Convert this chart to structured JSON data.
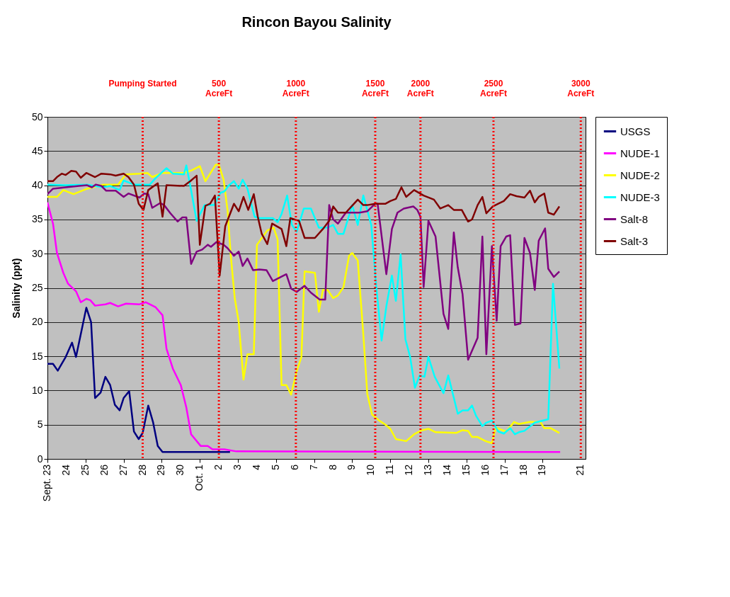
{
  "chart_data": {
    "type": "line",
    "title": "Rincon Bayou Salinity",
    "ylabel": "Salinity (ppt)",
    "xlim": [
      "--09-23",
      "--10-21T06:00"
    ],
    "ylim": [
      0,
      50
    ],
    "xticks": [
      {
        "value": "--09-23",
        "label": "Sept. 23"
      },
      {
        "value": "--09-24",
        "label": "24"
      },
      {
        "value": "--09-25",
        "label": "25"
      },
      {
        "value": "--09-26",
        "label": "26"
      },
      {
        "value": "--09-27",
        "label": "27"
      },
      {
        "value": "--09-28",
        "label": "28"
      },
      {
        "value": "--09-29",
        "label": "29"
      },
      {
        "value": "--09-30",
        "label": "30"
      },
      {
        "value": "--10-01",
        "label": "Oct. 1"
      },
      {
        "value": "--10-02",
        "label": "2"
      },
      {
        "value": "--10-03",
        "label": "3"
      },
      {
        "value": "--10-04",
        "label": "4"
      },
      {
        "value": "--10-05",
        "label": "5"
      },
      {
        "value": "--10-06",
        "label": "6"
      },
      {
        "value": "--10-07",
        "label": "7"
      },
      {
        "value": "--10-08",
        "label": "8"
      },
      {
        "value": "--10-09",
        "label": "9"
      },
      {
        "value": "--10-10",
        "label": "10"
      },
      {
        "value": "--10-11",
        "label": "11"
      },
      {
        "value": "--10-12",
        "label": "12"
      },
      {
        "value": "--10-13",
        "label": "13"
      },
      {
        "value": "--10-14",
        "label": "14"
      },
      {
        "value": "--10-15",
        "label": "15"
      },
      {
        "value": "--10-16",
        "label": "16"
      },
      {
        "value": "--10-17",
        "label": "17"
      },
      {
        "value": "--10-18",
        "label": "18"
      },
      {
        "value": "--10-19",
        "label": "19"
      },
      {
        "value": "--10-21",
        "label": "21"
      }
    ],
    "yticks": [
      0,
      5,
      10,
      15,
      20,
      25,
      30,
      35,
      40,
      45,
      50
    ],
    "grid": "y",
    "legend": "right",
    "ref_lines": [
      {
        "axis": "x",
        "value": "--09-28",
        "label": "Pumping Started",
        "color": "#ff0000",
        "line_style": "dotted"
      },
      {
        "axis": "x",
        "value": "--10-02",
        "label": "500\nAcreFt",
        "color": "#ff0000",
        "line_style": "dotted"
      },
      {
        "axis": "x",
        "value": "--10-06T01:00",
        "label": "1000\nAcreFt",
        "color": "#ff0000",
        "line_style": "dotted"
      },
      {
        "axis": "x",
        "value": "--10-10T05:00",
        "label": "1500\nAcreFt",
        "color": "#ff0000",
        "line_style": "dotted"
      },
      {
        "axis": "x",
        "value": "--10-12T14:00",
        "label": "2000\nAcreFt",
        "color": "#ff0000",
        "line_style": "dotted"
      },
      {
        "axis": "x",
        "value": "--10-16T10:00",
        "label": "2500\nAcreFt",
        "color": "#ff0000",
        "line_style": "dotted"
      },
      {
        "axis": "x",
        "value": "--10-21",
        "label": "3000\nAcreFt",
        "color": "#ff0000",
        "line_style": "dotted"
      }
    ],
    "series": [
      {
        "name": "USGS",
        "color": "#000080",
        "x": [
          "--09-23T00:00",
          "--09-23T07:00",
          "--09-23T13:00",
          "--09-23T23:00",
          "--09-24T07:00",
          "--09-24T12:00",
          "--09-25T01:00",
          "--09-25T07:00",
          "--09-25T12:00",
          "--09-25T19:00",
          "--09-26T01:00",
          "--09-26T07:00",
          "--09-26T13:00",
          "--09-26T19:00",
          "--09-27T00:00",
          "--09-27T07:00",
          "--09-27T13:00",
          "--09-27T19:00",
          "--09-28T00:00",
          "--09-28T07:00",
          "--09-28T13:00",
          "--09-28T19:00",
          "--09-29T01:00",
          "--10-02T14:00"
        ],
        "values": [
          13.9,
          13.9,
          12.9,
          14.9,
          17,
          14.9,
          22.1,
          20,
          8.9,
          9.7,
          12,
          10.8,
          7.9,
          7.1,
          8.9,
          9.9,
          4,
          2.9,
          3.8,
          7.8,
          5.4,
          1.9,
          1,
          1
        ]
      },
      {
        "name": "NUDE-1",
        "color": "#ff00ff",
        "x": [
          "--09-23T00:00",
          "--09-23T07:00",
          "--09-23T12:00",
          "--09-23T20:00",
          "--09-24T02:00",
          "--09-24T12:00",
          "--09-24T18:00",
          "--09-25T01:00",
          "--09-25T06:00",
          "--09-25T12:00",
          "--09-26T01:00",
          "--09-26T07:00",
          "--09-26T17:00",
          "--09-27T03:00",
          "--09-27T20:00",
          "--09-28T04:00",
          "--09-28T16:00",
          "--09-29T01:00",
          "--09-29T06:00",
          "--09-29T14:00",
          "--09-30T00:00",
          "--09-30T07:00",
          "--09-30T13:00",
          "--10-01T01:00",
          "--10-01T10:00",
          "--10-01T16:00",
          "--10-02T07:00",
          "--10-02T22:00",
          "--10-19T22:00"
        ],
        "values": [
          37.5,
          34.4,
          30.1,
          27.2,
          25.6,
          24.5,
          22.9,
          23.4,
          23.2,
          22.4,
          22.6,
          22.8,
          22.3,
          22.7,
          22.6,
          22.9,
          22.2,
          21,
          16.1,
          13.2,
          10.8,
          7.5,
          3.6,
          1.9,
          1.9,
          1.4,
          1.4,
          1.1,
          1
        ]
      },
      {
        "name": "NUDE-2",
        "color": "#ffff00",
        "x": [
          "--09-23T00:00",
          "--09-23T12:00",
          "--09-23T20:00",
          "--09-24T09:00",
          "--09-25T02:00",
          "--09-25T22:00",
          "--09-26T17:00",
          "--09-27T03:00",
          "--09-27T20:00",
          "--09-28T06:00",
          "--09-28T12:00",
          "--09-29T01:00",
          "--09-30T04:00",
          "--09-30T14:00",
          "--10-01T00:00",
          "--10-01T07:00",
          "--10-01T20:00",
          "--10-02T00:00",
          "--10-02T06:00",
          "--10-02T11:00",
          "--10-02T15:00",
          "--10-02T20:00",
          "--10-03T01:00",
          "--10-03T07:00",
          "--10-03T12:00",
          "--10-03T20:00",
          "--10-04T00:00",
          "--10-04T13:00",
          "--10-04T21:00",
          "--10-05T02:00",
          "--10-05T07:00",
          "--10-05T13:00",
          "--10-05T19:00",
          "--10-06T02:00",
          "--10-06T08:00",
          "--10-06T12:00",
          "--10-07T01:00",
          "--10-07T06:00",
          "--10-07T11:00",
          "--10-07T17:00",
          "--10-08T00:00",
          "--10-08T06:00",
          "--10-08T13:00",
          "--10-08T20:00",
          "--10-09T00:00",
          "--10-09T07:00",
          "--10-09T14:00",
          "--10-09T19:00",
          "--10-10T01:00",
          "--10-10T10:00",
          "--10-10T18:00",
          "--10-11T00:00",
          "--10-11T07:00",
          "--10-11T20:00",
          "--10-12T06:00",
          "--10-12T16:00",
          "--10-13T00:00",
          "--10-13T09:00",
          "--10-14T11:00",
          "--10-14T19:00",
          "--10-15T02:00",
          "--10-15T07:00",
          "--10-15T14:00",
          "--10-16T00:00",
          "--10-16T08:00",
          "--10-16T13:00",
          "--10-16T19:00",
          "--10-17T02:00",
          "--10-17T12:00",
          "--10-17T18:00",
          "--10-18T08:00",
          "--10-18T21:00",
          "--10-19T02:00",
          "--10-19T10:00",
          "--10-19T21:00"
        ],
        "values": [
          38.3,
          38.3,
          39.3,
          38.7,
          39.5,
          40.1,
          40.1,
          41.6,
          41.7,
          41.8,
          41.2,
          41.8,
          41.8,
          42.2,
          42.8,
          40.6,
          43,
          43,
          40.8,
          36.3,
          29.7,
          23.5,
          20,
          11.6,
          15.3,
          15.3,
          31.3,
          33.4,
          33.8,
          32.1,
          10.8,
          10.8,
          9.4,
          12.8,
          14.9,
          27.4,
          27.2,
          21.5,
          24.7,
          24.7,
          23.5,
          23.9,
          25.1,
          29.7,
          30.1,
          29,
          18.2,
          9.5,
          6.5,
          5.6,
          5,
          4.4,
          2.9,
          2.6,
          3.6,
          4.2,
          4.4,
          3.9,
          3.8,
          4.2,
          4.1,
          3.2,
          3.2,
          2.6,
          2.3,
          4.6,
          4.3,
          4,
          5.4,
          5.1,
          5.4,
          5.4,
          4.5,
          4.5,
          3.8
        ]
      },
      {
        "name": "NUDE-3",
        "color": "#00ffff",
        "x": [
          "--09-23T00:00",
          "--09-23T23:00",
          "--09-25T02:00",
          "--09-25T22:00",
          "--09-26T07:00",
          "--09-26T19:00",
          "--09-27T00:00",
          "--09-27T13:00",
          "--09-28T09:00",
          "--09-28T16:00",
          "--09-29T06:00",
          "--09-29T14:00",
          "--09-30T04:00",
          "--09-30T07:00",
          "--09-30T12:00",
          "--09-30T20:00",
          "--10-01T06:00",
          "--10-01T18:00",
          "--10-02T02:00",
          "--10-02T07:00",
          "--10-02T12:00",
          "--10-02T19:00",
          "--10-03T01:00",
          "--10-03T06:00",
          "--10-03T12:00",
          "--10-03T21:00",
          "--10-04T03:00",
          "--10-04T20:00",
          "--10-05T02:00",
          "--10-05T07:00",
          "--10-05T14:00",
          "--10-05T20:00",
          "--10-06T02:00",
          "--10-06T11:00",
          "--10-06T20:00",
          "--10-07T06:00",
          "--10-07T17:00",
          "--10-08T00:00",
          "--10-08T06:00",
          "--10-08T13:00",
          "--10-09T00:00",
          "--10-09T07:00",
          "--10-09T14:00",
          "--10-10T00:00",
          "--10-10T06:00",
          "--10-10T13:00",
          "--10-10T19:00",
          "--10-11T02:00",
          "--10-11T07:00",
          "--10-11T13:00",
          "--10-11T19:00",
          "--10-12T01:00",
          "--10-12T07:00",
          "--10-12T13:00",
          "--10-12T19:00",
          "--10-13T00:00",
          "--10-13T08:00",
          "--10-13T19:00",
          "--10-14T01:00",
          "--10-14T13:00",
          "--10-14T19:00",
          "--10-15T02:00",
          "--10-15T07:00",
          "--10-15T12:00",
          "--10-15T20:00",
          "--10-16T01:00",
          "--10-16T08:00",
          "--10-16T16:00",
          "--10-16T23:00",
          "--10-17T07:00",
          "--10-17T13:00",
          "--10-17T18:00",
          "--10-18T01:00",
          "--10-18T14:00",
          "--10-19T07:00",
          "--10-19T13:00",
          "--10-19T21:00"
        ],
        "values": [
          40.1,
          40,
          40.1,
          39.7,
          39.9,
          39.3,
          40.7,
          40.1,
          40.1,
          41,
          42.5,
          41.7,
          41.6,
          42.9,
          39.9,
          34.8,
          37.1,
          37.1,
          38.9,
          39.1,
          39.9,
          40.6,
          39.5,
          40.8,
          39.5,
          35.4,
          35.2,
          35.2,
          34.6,
          35.8,
          38.5,
          34.2,
          33.2,
          36.6,
          36.6,
          33.8,
          33.8,
          34.2,
          32.9,
          32.9,
          37.1,
          34.2,
          38.5,
          34.2,
          25.6,
          17.3,
          22.3,
          26.8,
          23.1,
          29.9,
          17.5,
          14.9,
          10.4,
          12.2,
          12,
          14.9,
          12,
          9.6,
          12.2,
          6.6,
          7.1,
          7.1,
          7.8,
          6.3,
          4.8,
          5.3,
          5.6,
          4,
          3.7,
          4.5,
          3.6,
          3.9,
          4.1,
          5.3,
          5.8,
          25.6,
          13.2
        ]
      },
      {
        "name": "Salt-8",
        "color": "#800080",
        "x": [
          "--09-23T00:00",
          "--09-23T07:00",
          "--09-23T23:00",
          "--09-24T16:00",
          "--09-25T02:00",
          "--09-25T08:00",
          "--09-25T13:00",
          "--09-25T20:00",
          "--09-26T02:00",
          "--09-26T14:00",
          "--09-27T00:00",
          "--09-27T06:00",
          "--09-27T20:00",
          "--09-28T02:00",
          "--09-28T07:00",
          "--09-28T12:00",
          "--09-28T22:00",
          "--09-29T03:00",
          "--09-29T11:00",
          "--09-29T20:00",
          "--09-30T02:00",
          "--09-30T07:00",
          "--09-30T13:00",
          "--09-30T20:00",
          "--10-01T03:00",
          "--10-01T10:00",
          "--10-01T14:00",
          "--10-01T21:00",
          "--10-02T06:00",
          "--10-02T11:00",
          "--10-02T19:00",
          "--10-03T01:00",
          "--10-03T06:00",
          "--10-03T12:00",
          "--10-03T19:00",
          "--10-04T03:00",
          "--10-04T12:00",
          "--10-04T20:00",
          "--10-05T06:00",
          "--10-05T13:00",
          "--10-05T19:00",
          "--10-06T02:00",
          "--10-06T12:00",
          "--10-06T20:00",
          "--10-07T07:00",
          "--10-07T14:00",
          "--10-07T19:00",
          "--10-08T00:00",
          "--10-08T06:00",
          "--10-08T16:00",
          "--10-09T02:00",
          "--10-09T09:00",
          "--10-09T19:00",
          "--10-10T05:00",
          "--10-10T08:00",
          "--10-10T19:00",
          "--10-11T02:00",
          "--10-11T09:00",
          "--10-11T17:00",
          "--10-12T05:00",
          "--10-12T10:00",
          "--10-12T14:00",
          "--10-12T18:00",
          "--10-13T00:00",
          "--10-13T09:00",
          "--10-13T19:00",
          "--10-14T01:00",
          "--10-14T08:00",
          "--10-14T13:00",
          "--10-14T19:00",
          "--10-15T02:00",
          "--10-15T14:00",
          "--10-15T20:00",
          "--10-16T01:00",
          "--10-16T08:00",
          "--10-16T14:00",
          "--10-16T19:00",
          "--10-17T02:00",
          "--10-17T07:00",
          "--10-17T13:00",
          "--10-17T20:00",
          "--10-18T01:00",
          "--10-18T08:00",
          "--10-18T14:00",
          "--10-18T19:00",
          "--10-19T03:00",
          "--10-19T07:00",
          "--10-19T14:00",
          "--10-19T21:00"
        ],
        "values": [
          38.7,
          39.5,
          39.7,
          39.9,
          40,
          39.7,
          40.1,
          39.9,
          39.2,
          39.2,
          38.3,
          38.8,
          38.2,
          38.8,
          38.7,
          36.7,
          37.4,
          37.1,
          35.9,
          34.7,
          35.3,
          35.3,
          28.5,
          30.3,
          30.6,
          31.3,
          31,
          31.7,
          31.3,
          30.8,
          29.7,
          30.3,
          28.2,
          29.3,
          27.6,
          27.7,
          27.6,
          26,
          26.6,
          27,
          24.9,
          24.4,
          25.3,
          24.3,
          23.3,
          23.3,
          37.1,
          35,
          34.4,
          36,
          36,
          36,
          36.2,
          37.3,
          37.3,
          27,
          33.6,
          36,
          36.6,
          36.9,
          36.4,
          35.4,
          25.1,
          34.8,
          32.5,
          21.2,
          19,
          33.1,
          28,
          24.1,
          14.5,
          17.7,
          32.5,
          15.3,
          31.1,
          20.2,
          31.1,
          32.5,
          32.7,
          19.6,
          19.8,
          32.3,
          30.1,
          24.7,
          31.9,
          33.7,
          27.8,
          26.6,
          27.4
        ]
      },
      {
        "name": "Salt-3",
        "color": "#800000",
        "x": [
          "--09-23T00:00",
          "--09-23T07:00",
          "--09-23T12:00",
          "--09-23T18:00",
          "--09-23T23:00",
          "--09-24T06:00",
          "--09-24T12:00",
          "--09-24T18:00",
          "--09-25T01:00",
          "--09-25T12:00",
          "--09-25T20:00",
          "--09-26T07:00",
          "--09-26T14:00",
          "--09-27T00:00",
          "--09-27T06:00",
          "--09-27T13:00",
          "--09-27T19:00",
          "--09-28T01:00",
          "--09-28T07:00",
          "--09-28T19:00",
          "--09-29T01:00",
          "--09-29T06:00",
          "--09-30T04:00",
          "--09-30T12:00",
          "--09-30T20:00",
          "--10-01T00:00",
          "--10-01T07:00",
          "--10-01T13:00",
          "--10-01T19:00",
          "--10-02T01:00",
          "--10-02T08:00",
          "--10-02T19:00",
          "--10-03T01:00",
          "--10-03T07:00",
          "--10-03T13:00",
          "--10-03T20:00",
          "--10-04T01:00",
          "--10-04T06:00",
          "--10-04T13:00",
          "--10-04T19:00",
          "--10-05T07:00",
          "--10-05T13:00",
          "--10-05T18:00",
          "--10-06T05:00",
          "--10-06T12:00",
          "--10-07T01:00",
          "--10-07T11:00",
          "--10-07T19:00",
          "--10-08T00:00",
          "--10-08T06:00",
          "--10-08T16:00",
          "--10-08T23:00",
          "--10-09T07:00",
          "--10-09T14:00",
          "--10-09T19:00",
          "--10-10T05:00",
          "--10-10T18:00",
          "--10-11T00:00",
          "--10-11T07:00",
          "--10-11T14:00",
          "--10-11T20:00",
          "--10-12T06:00",
          "--10-12T18:00",
          "--10-13T07:00",
          "--10-13T15:00",
          "--10-14T01:00",
          "--10-14T08:00",
          "--10-14T18:00",
          "--10-15T02:00",
          "--10-15T07:00",
          "--10-15T14:00",
          "--10-15T20:00",
          "--10-16T01:00",
          "--10-16T09:00",
          "--10-16T16:00",
          "--10-16T23:00",
          "--10-17T07:00",
          "--10-17T15:00",
          "--10-18T01:00",
          "--10-18T08:00",
          "--10-18T14:00",
          "--10-18T19:00",
          "--10-19T02:00",
          "--10-19T07:00",
          "--10-19T14:00",
          "--10-19T21:00"
        ],
        "values": [
          40.6,
          40.6,
          41.2,
          41.7,
          41.5,
          42.1,
          42,
          41.1,
          41.8,
          41.2,
          41.7,
          41.6,
          41.4,
          41.7,
          41.2,
          40.1,
          37.3,
          36.4,
          39.3,
          40.3,
          35.4,
          40,
          39.9,
          40.6,
          41.4,
          31.3,
          37,
          37.3,
          38.5,
          26.8,
          34,
          37.3,
          36.2,
          38.3,
          36.4,
          38.7,
          35.4,
          32.9,
          31.4,
          34.4,
          33.6,
          31.1,
          35.2,
          34.8,
          32.3,
          32.3,
          33.6,
          34.8,
          36.9,
          36,
          36,
          36.9,
          37.9,
          37.1,
          37.1,
          37.3,
          37.3,
          37.7,
          38,
          39.7,
          38.3,
          39.3,
          38.5,
          37.9,
          36.6,
          37.1,
          36.4,
          36.4,
          34.7,
          35,
          37.1,
          38.3,
          35.9,
          36.9,
          37.3,
          37.7,
          38.7,
          38.4,
          38.2,
          39.2,
          37.5,
          38.3,
          38.8,
          36,
          35.7,
          36.9
        ]
      }
    ]
  }
}
